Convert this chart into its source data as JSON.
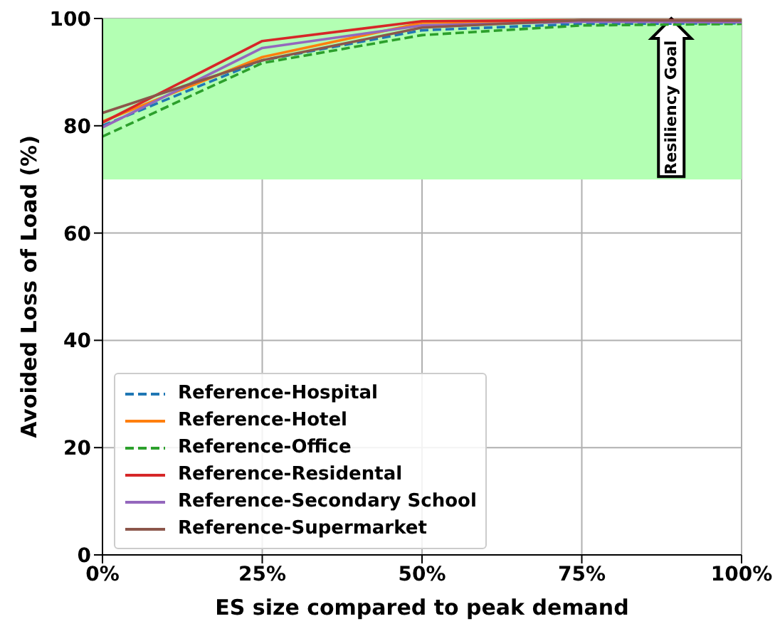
{
  "chart_data": {
    "type": "line",
    "xlabel": "ES size compared to peak demand",
    "ylabel": "Avoided Loss of Load (%)",
    "x": [
      0,
      0.25,
      0.5,
      0.75,
      1
    ],
    "series": [
      {
        "name": "Reference-Hospital",
        "color": "#1f77b4",
        "line_style": "dashed",
        "values": [
          80,
          92.2,
          97.8,
          99,
          99.1
        ]
      },
      {
        "name": "Reference-Hotel",
        "color": "#ff7f0e",
        "line_style": "solid",
        "values": [
          80.8,
          92.8,
          99.2,
          99.6,
          99.6
        ]
      },
      {
        "name": "Reference-Office",
        "color": "#2ca02c",
        "line_style": "dashed",
        "values": [
          78,
          91.7,
          96.9,
          98.7,
          99
        ]
      },
      {
        "name": "Reference-Residental",
        "color": "#d62728",
        "line_style": "solid",
        "values": [
          80.6,
          95.8,
          99.5,
          99.7,
          99.7
        ]
      },
      {
        "name": "Reference-Secondary School",
        "color": "#9467bd",
        "line_style": "solid",
        "values": [
          79.7,
          94.5,
          98.7,
          99.4,
          99.3
        ]
      },
      {
        "name": "Reference-Supermarket",
        "color": "#8c564b",
        "line_style": "solid",
        "values": [
          82.4,
          92.2,
          98.3,
          99.7,
          99.6
        ]
      }
    ],
    "xlim": [
      0,
      1
    ],
    "xticks": [
      {
        "value": 0,
        "label": "0%"
      },
      {
        "value": 0.25,
        "label": "25%"
      },
      {
        "value": 0.5,
        "label": "50%"
      },
      {
        "value": 0.75,
        "label": "75%"
      },
      {
        "value": 1,
        "label": "100%"
      }
    ],
    "ylim": [
      0,
      100
    ],
    "yticks": [
      0,
      20,
      40,
      60,
      80,
      100
    ],
    "bands": [
      {
        "axis": "y",
        "from": 70,
        "to": 100,
        "label": "Resiliency Goal",
        "color": "#b3ffb3"
      }
    ],
    "grid": true,
    "legend": "bottom left",
    "marker": "none"
  }
}
